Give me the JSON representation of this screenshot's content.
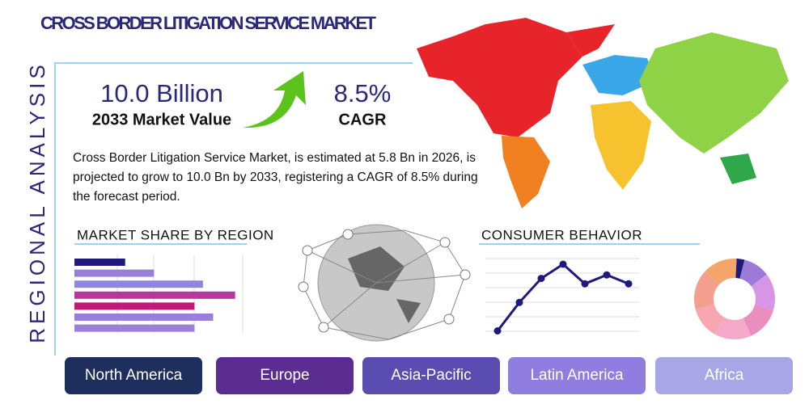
{
  "header": {
    "title": "CROSS BORDER LITIGATION SERVICE MARKET",
    "side_label": "REGIONAL ANALYSIS"
  },
  "stats": [
    {
      "value": "10.0 Billion",
      "label": "2033 Market Value"
    },
    {
      "value": "8.5%",
      "label": "CAGR"
    }
  ],
  "description": "Cross Border Litigation Service Market, is estimated at 5.8 Bn in 2026, is projected to grow to 10.0 Bn by 2033, registering a CAGR of 8.5% during the forecast period.",
  "market_share": {
    "title": "MARKET SHARE BY REGION",
    "values": [
      30,
      47,
      76,
      95,
      71,
      82,
      71
    ],
    "colors": [
      "#1f1a7a",
      "#9a7fd8",
      "#8f86e0",
      "#b5389a",
      "#c2187a",
      "#9a7fd8",
      "#9a7fd8"
    ],
    "xlim": [
      0,
      110
    ]
  },
  "consumer_behavior": {
    "title": "CONSUMER BEHAVIOR",
    "values": [
      5,
      37,
      64,
      80,
      58,
      68,
      58
    ],
    "ylim": [
      0,
      100
    ],
    "color": "#1f1a7a"
  },
  "donut": {
    "values": [
      3,
      10,
      14,
      13,
      14,
      12,
      15,
      13
    ],
    "colors": [
      "#1f1a7a",
      "#9c7ad8",
      "#d795e8",
      "#ea8ec0",
      "#f5a9c8",
      "#f7a6b0",
      "#f49e8e",
      "#f3a56a"
    ]
  },
  "regions": [
    "North America",
    "Europe",
    "Asia-Pacific",
    "Latin America",
    "Africa"
  ]
}
